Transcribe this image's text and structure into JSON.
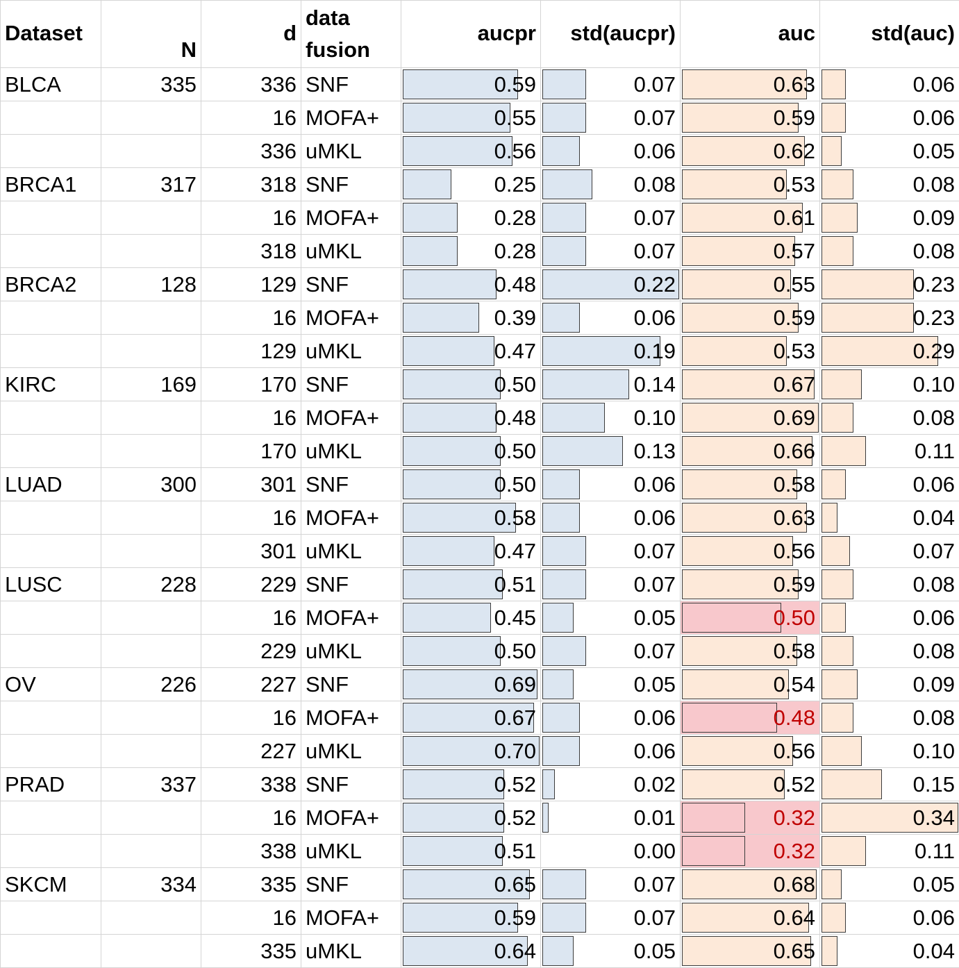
{
  "headers": {
    "dataset": "Dataset",
    "n": "N",
    "d": "d",
    "fusion_line1": "data",
    "fusion_line2": "fusion",
    "aucpr": "aucpr",
    "std_aucpr": "std(aucpr)",
    "auc": "auc",
    "std_auc": "std(auc)"
  },
  "colors": {
    "aucpr_bar": "#dce6f1",
    "auc_bar": "#fde9d9",
    "flag_fill": "#f8c8cc",
    "flag_text": "#c00000"
  },
  "rows": [
    {
      "dataset": "BLCA",
      "n": "335",
      "d": "336",
      "fusion": "SNF",
      "aucpr": "0.59",
      "std_aucpr": "0.07",
      "auc": "0.63",
      "std_auc": "0.06"
    },
    {
      "dataset": "",
      "n": "",
      "d": "16",
      "fusion": "MOFA+",
      "aucpr": "0.55",
      "std_aucpr": "0.07",
      "auc": "0.59",
      "std_auc": "0.06"
    },
    {
      "dataset": "",
      "n": "",
      "d": "336",
      "fusion": "uMKL",
      "aucpr": "0.56",
      "std_aucpr": "0.06",
      "auc": "0.62",
      "std_auc": "0.05"
    },
    {
      "dataset": "BRCA1",
      "n": "317",
      "d": "318",
      "fusion": "SNF",
      "aucpr": "0.25",
      "std_aucpr": "0.08",
      "auc": "0.53",
      "std_auc": "0.08"
    },
    {
      "dataset": "",
      "n": "",
      "d": "16",
      "fusion": "MOFA+",
      "aucpr": "0.28",
      "std_aucpr": "0.07",
      "auc": "0.61",
      "std_auc": "0.09"
    },
    {
      "dataset": "",
      "n": "",
      "d": "318",
      "fusion": "uMKL",
      "aucpr": "0.28",
      "std_aucpr": "0.07",
      "auc": "0.57",
      "std_auc": "0.08"
    },
    {
      "dataset": "BRCA2",
      "n": "128",
      "d": "129",
      "fusion": "SNF",
      "aucpr": "0.48",
      "std_aucpr": "0.22",
      "auc": "0.55",
      "std_auc": "0.23"
    },
    {
      "dataset": "",
      "n": "",
      "d": "16",
      "fusion": "MOFA+",
      "aucpr": "0.39",
      "std_aucpr": "0.06",
      "auc": "0.59",
      "std_auc": "0.23"
    },
    {
      "dataset": "",
      "n": "",
      "d": "129",
      "fusion": "uMKL",
      "aucpr": "0.47",
      "std_aucpr": "0.19",
      "auc": "0.53",
      "std_auc": "0.29"
    },
    {
      "dataset": "KIRC",
      "n": "169",
      "d": "170",
      "fusion": "SNF",
      "aucpr": "0.50",
      "std_aucpr": "0.14",
      "auc": "0.67",
      "std_auc": "0.10"
    },
    {
      "dataset": "",
      "n": "",
      "d": "16",
      "fusion": "MOFA+",
      "aucpr": "0.48",
      "std_aucpr": "0.10",
      "auc": "0.69",
      "std_auc": "0.08"
    },
    {
      "dataset": "",
      "n": "",
      "d": "170",
      "fusion": "uMKL",
      "aucpr": "0.50",
      "std_aucpr": "0.13",
      "auc": "0.66",
      "std_auc": "0.11"
    },
    {
      "dataset": "LUAD",
      "n": "300",
      "d": "301",
      "fusion": "SNF",
      "aucpr": "0.50",
      "std_aucpr": "0.06",
      "auc": "0.58",
      "std_auc": "0.06"
    },
    {
      "dataset": "",
      "n": "",
      "d": "16",
      "fusion": "MOFA+",
      "aucpr": "0.58",
      "std_aucpr": "0.06",
      "auc": "0.63",
      "std_auc": "0.04"
    },
    {
      "dataset": "",
      "n": "",
      "d": "301",
      "fusion": "uMKL",
      "aucpr": "0.47",
      "std_aucpr": "0.07",
      "auc": "0.56",
      "std_auc": "0.07"
    },
    {
      "dataset": "LUSC",
      "n": "228",
      "d": "229",
      "fusion": "SNF",
      "aucpr": "0.51",
      "std_aucpr": "0.07",
      "auc": "0.59",
      "std_auc": "0.08"
    },
    {
      "dataset": "",
      "n": "",
      "d": "16",
      "fusion": "MOFA+",
      "aucpr": "0.45",
      "std_aucpr": "0.05",
      "auc": "0.50",
      "std_auc": "0.06",
      "flag": true
    },
    {
      "dataset": "",
      "n": "",
      "d": "229",
      "fusion": "uMKL",
      "aucpr": "0.50",
      "std_aucpr": "0.07",
      "auc": "0.58",
      "std_auc": "0.08"
    },
    {
      "dataset": "OV",
      "n": "226",
      "d": "227",
      "fusion": "SNF",
      "aucpr": "0.69",
      "std_aucpr": "0.05",
      "auc": "0.54",
      "std_auc": "0.09"
    },
    {
      "dataset": "",
      "n": "",
      "d": "16",
      "fusion": "MOFA+",
      "aucpr": "0.67",
      "std_aucpr": "0.06",
      "auc": "0.48",
      "std_auc": "0.08",
      "flag": true
    },
    {
      "dataset": "",
      "n": "",
      "d": "227",
      "fusion": "uMKL",
      "aucpr": "0.70",
      "std_aucpr": "0.06",
      "auc": "0.56",
      "std_auc": "0.10"
    },
    {
      "dataset": "PRAD",
      "n": "337",
      "d": "338",
      "fusion": "SNF",
      "aucpr": "0.52",
      "std_aucpr": "0.02",
      "auc": "0.52",
      "std_auc": "0.15"
    },
    {
      "dataset": "",
      "n": "",
      "d": "16",
      "fusion": "MOFA+",
      "aucpr": "0.52",
      "std_aucpr": "0.01",
      "auc": "0.32",
      "std_auc": "0.34",
      "flag": true
    },
    {
      "dataset": "",
      "n": "",
      "d": "338",
      "fusion": "uMKL",
      "aucpr": "0.51",
      "std_aucpr": "0.00",
      "auc": "0.32",
      "std_auc": "0.11",
      "flag": true
    },
    {
      "dataset": "SKCM",
      "n": "334",
      "d": "335",
      "fusion": "SNF",
      "aucpr": "0.65",
      "std_aucpr": "0.07",
      "auc": "0.68",
      "std_auc": "0.05"
    },
    {
      "dataset": "",
      "n": "",
      "d": "16",
      "fusion": "MOFA+",
      "aucpr": "0.59",
      "std_aucpr": "0.07",
      "auc": "0.64",
      "std_auc": "0.06"
    },
    {
      "dataset": "",
      "n": "",
      "d": "335",
      "fusion": "uMKL",
      "aucpr": "0.64",
      "std_aucpr": "0.05",
      "auc": "0.65",
      "std_auc": "0.04"
    }
  ]
}
